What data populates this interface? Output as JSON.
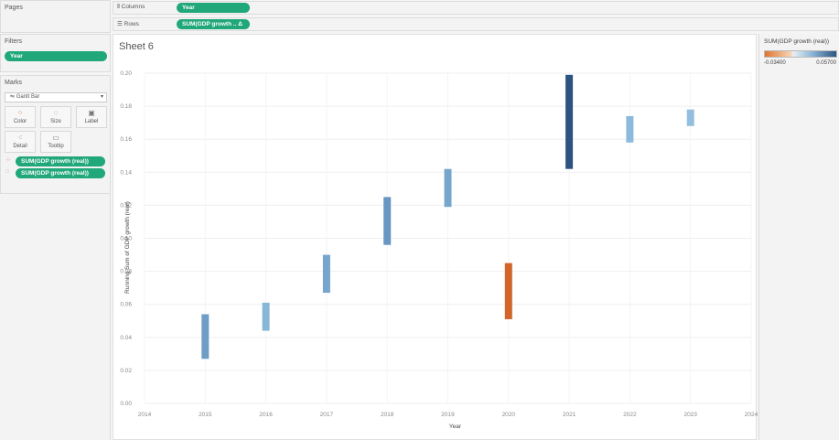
{
  "pages": {
    "title": "Pages"
  },
  "filters": {
    "title": "Filters",
    "pills": [
      "Year"
    ]
  },
  "marks": {
    "title": "Marks",
    "mark_type": "Gantt Bar",
    "buttons": [
      {
        "label": "Color",
        "icon": "color-icon"
      },
      {
        "label": "Size",
        "icon": "size-icon"
      },
      {
        "label": "Label",
        "icon": "label-icon"
      },
      {
        "label": "Detail",
        "icon": "detail-icon"
      },
      {
        "label": "Tooltip",
        "icon": "tooltip-icon"
      }
    ],
    "fields": [
      "SUM(GDP growth (real))",
      "SUM(GDP growth (real))"
    ]
  },
  "shelves": {
    "columns_label": "Columns",
    "columns_pill": "Year",
    "rows_label": "Rows",
    "rows_pill": "SUM(GDP growth .. Δ"
  },
  "sheet": {
    "title": "Sheet 6"
  },
  "legend": {
    "title": "SUM(GDP growth (real))",
    "min": "-0.03400",
    "max": "0.05700",
    "colors": {
      "neg": "#d2652a",
      "mid_low": "#bcd3e6",
      "mid": "#87b5d8",
      "high": "#2b5480"
    }
  },
  "chart_data": {
    "type": "gantt",
    "xlabel": "Year",
    "ylabel": "Running Sum of GDP growth (real)",
    "xlim": [
      2014,
      2024
    ],
    "ylim": [
      0,
      0.2
    ],
    "x_ticks": [
      "2014",
      "2015",
      "2016",
      "2017",
      "2018",
      "2019",
      "2020",
      "2021",
      "2022",
      "2023",
      "2024"
    ],
    "y_ticks": [
      "0.00",
      "0.02",
      "0.04",
      "0.06",
      "0.08",
      "0.10",
      "0.12",
      "0.14",
      "0.16",
      "0.18",
      "0.20"
    ],
    "bars": [
      {
        "year": 2015,
        "start": 0.027,
        "end": 0.054,
        "growth": 0.027,
        "color": "#6e9dc6"
      },
      {
        "year": 2016,
        "start": 0.044,
        "end": 0.061,
        "growth": 0.017,
        "color": "#88b6d8"
      },
      {
        "year": 2017,
        "start": 0.067,
        "end": 0.09,
        "growth": 0.023,
        "color": "#77a6cd"
      },
      {
        "year": 2018,
        "start": 0.096,
        "end": 0.125,
        "growth": 0.029,
        "color": "#6797c2"
      },
      {
        "year": 2019,
        "start": 0.119,
        "end": 0.142,
        "growth": 0.023,
        "color": "#77a6cd"
      },
      {
        "year": 2020,
        "start": 0.051,
        "end": 0.085,
        "growth": -0.034,
        "color": "#d2652a"
      },
      {
        "year": 2021,
        "start": 0.142,
        "end": 0.199,
        "growth": 0.057,
        "color": "#2c5480"
      },
      {
        "year": 2022,
        "start": 0.158,
        "end": 0.174,
        "growth": 0.016,
        "color": "#8cbadc"
      },
      {
        "year": 2023,
        "start": 0.168,
        "end": 0.178,
        "growth": 0.01,
        "color": "#93bfdf"
      }
    ]
  }
}
